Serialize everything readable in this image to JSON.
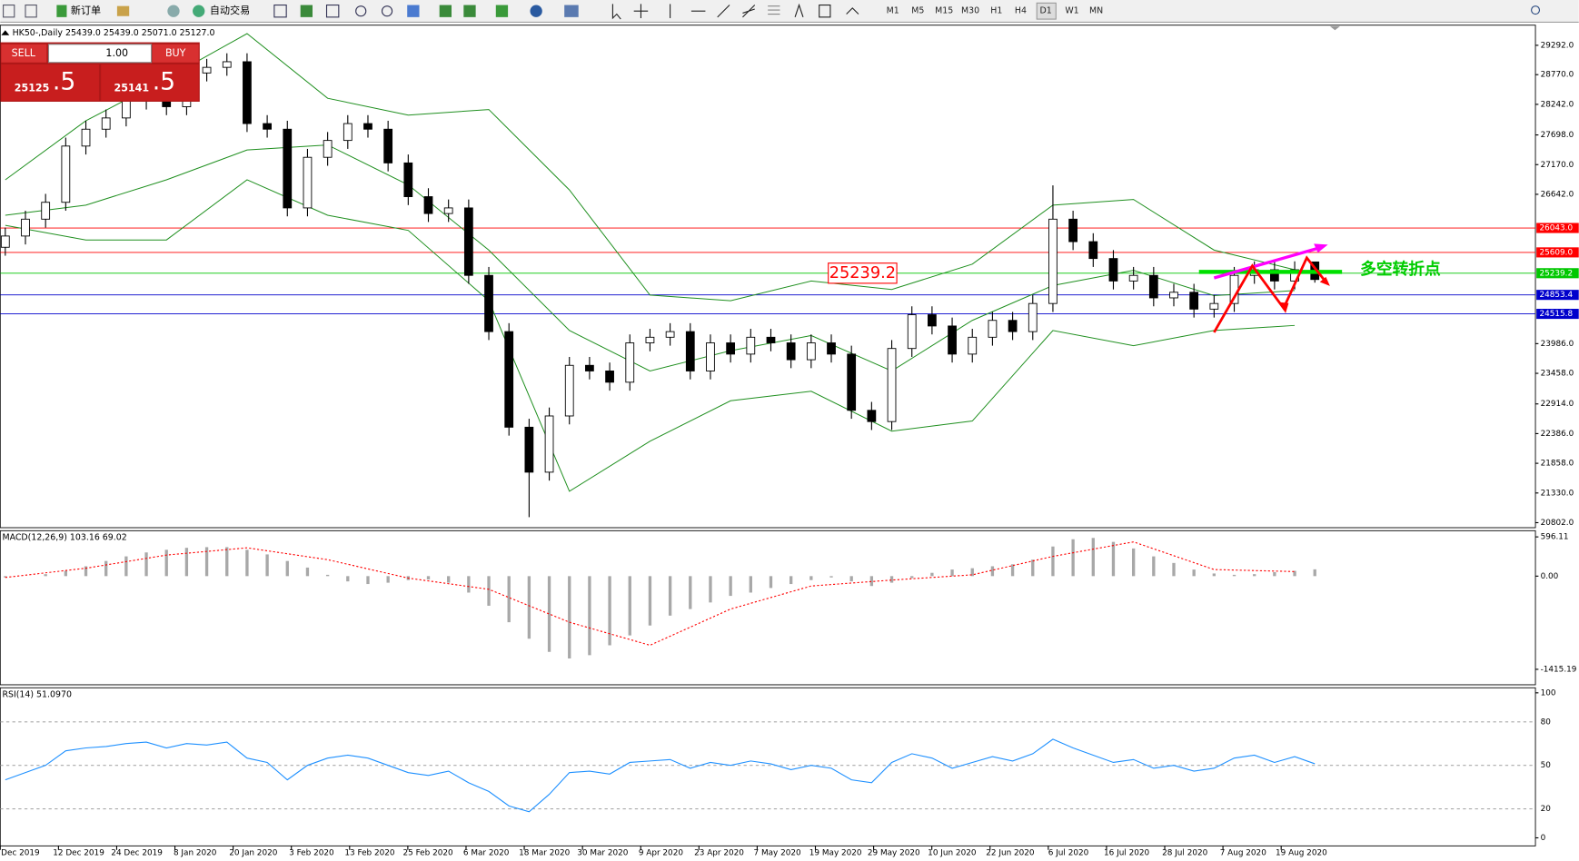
{
  "toolbar": {
    "new_order": "新订单",
    "auto_trade": "自动交易",
    "timeframes": [
      "M1",
      "M5",
      "M15",
      "M30",
      "H1",
      "H4",
      "D1",
      "W1",
      "MN"
    ]
  },
  "trade_panel": {
    "sell": "SELL",
    "buy": "BUY",
    "lot": "1.00",
    "sell_price": "25125",
    "sell_pips": ".5",
    "buy_price": "25141",
    "buy_pips": ".5"
  },
  "chart_data": {
    "type": "candlestick",
    "title": "HK50-,Daily 25439.0 25439.0 25071.0 25127.0",
    "x_labels": [
      "Dec 2019",
      "12 Dec 2019",
      "24 Dec 2019",
      "8 Jan 2020",
      "20 Jan 2020",
      "3 Feb 2020",
      "13 Feb 2020",
      "25 Feb 2020",
      "6 Mar 2020",
      "18 Mar 2020",
      "30 Mar 2020",
      "9 Apr 2020",
      "23 Apr 2020",
      "7 May 2020",
      "19 May 2020",
      "29 May 2020",
      "10 Jun 2020",
      "22 Jun 2020",
      "6 Jul 2020",
      "16 Jul 2020",
      "28 Jul 2020",
      "7 Aug 2020",
      "19 Aug 2020"
    ],
    "open": [
      25700,
      25900,
      26200,
      26500,
      27500,
      27800,
      28000,
      28300,
      28500,
      28200,
      28800,
      28900,
      29000,
      27900,
      27800,
      26400,
      27300,
      27600,
      27900,
      27800,
      27200,
      26600,
      26300,
      26400,
      25200,
      24200,
      22500,
      21700,
      22700,
      23600,
      23500,
      23300,
      24000,
      24100,
      24200,
      23500,
      24000,
      23800,
      24100,
      24000,
      23700,
      24000,
      23800,
      22800,
      22600,
      23900,
      24500,
      24300,
      23800,
      24100,
      24400,
      24200,
      24700,
      26200,
      25800,
      25500,
      25100,
      25200,
      24800,
      24900,
      24600,
      24700,
      25200,
      25300,
      25100,
      25439
    ],
    "high": [
      26050,
      26350,
      26650,
      27650,
      27950,
      28150,
      28450,
      28650,
      28650,
      28950,
      29050,
      29150,
      29150,
      28050,
      27950,
      27450,
      27750,
      28050,
      28050,
      27950,
      27350,
      26750,
      26550,
      26550,
      25350,
      24350,
      22650,
      22850,
      23750,
      23750,
      23650,
      24150,
      24250,
      24350,
      24350,
      24150,
      24150,
      24250,
      24250,
      24150,
      24150,
      24150,
      23950,
      22950,
      24050,
      24650,
      24650,
      24450,
      24250,
      24550,
      24550,
      24850,
      26800,
      26350,
      25950,
      25650,
      25350,
      25350,
      25050,
      25050,
      24850,
      25350,
      25450,
      25450,
      25450,
      25439
    ],
    "low": [
      25550,
      25750,
      26050,
      26350,
      27350,
      27650,
      27850,
      28150,
      28050,
      28050,
      28650,
      28750,
      27750,
      27650,
      26250,
      26250,
      27150,
      27450,
      27650,
      27050,
      26450,
      26150,
      26150,
      25050,
      24050,
      22350,
      20900,
      21550,
      22550,
      23350,
      23150,
      23150,
      23850,
      23950,
      23350,
      23350,
      23650,
      23650,
      23850,
      23550,
      23550,
      23650,
      22650,
      22450,
      22450,
      23750,
      24150,
      23650,
      23650,
      23950,
      24050,
      24050,
      24550,
      25650,
      25350,
      24950,
      24950,
      24650,
      24650,
      24450,
      24450,
      24550,
      25050,
      24950,
      24950,
      25071
    ],
    "close": [
      25900,
      26200,
      26500,
      27500,
      27800,
      28000,
      28300,
      28500,
      28200,
      28800,
      28900,
      29000,
      27900,
      27800,
      26400,
      27300,
      27600,
      27900,
      27800,
      27200,
      26600,
      26300,
      26400,
      25200,
      24200,
      22500,
      21700,
      22700,
      23600,
      23500,
      23300,
      24000,
      24100,
      24200,
      23500,
      24000,
      23800,
      24100,
      24000,
      23700,
      24000,
      23800,
      22800,
      22600,
      23900,
      24500,
      24300,
      23800,
      24100,
      24400,
      24200,
      24700,
      26200,
      25800,
      25500,
      25100,
      25200,
      24800,
      24900,
      24600,
      24700,
      25200,
      25300,
      25100,
      25300,
      25127
    ],
    "up_color": "#ffffff",
    "down_color": "#000000",
    "ylim": [
      20713,
      29650
    ],
    "yticks": [
      {
        "value": 29292,
        "label": "29292.0"
      },
      {
        "value": 28770,
        "label": "28770.0"
      },
      {
        "value": 28242,
        "label": "28242.0"
      },
      {
        "value": 27698,
        "label": "27698.0"
      },
      {
        "value": 27170,
        "label": "27170.0"
      },
      {
        "value": 26642,
        "label": "26642.0"
      },
      {
        "value": 23986,
        "label": "23986.0"
      },
      {
        "value": 23458,
        "label": "23458.0"
      },
      {
        "value": 22914,
        "label": "22914.0"
      },
      {
        "value": 22386,
        "label": "22386.0"
      },
      {
        "value": 21858,
        "label": "21858.0"
      },
      {
        "value": 21330,
        "label": "21330.0"
      },
      {
        "value": 20802,
        "label": "20802.0"
      }
    ],
    "bands": {
      "x": [
        0,
        4,
        8,
        12,
        16,
        20,
        24,
        28,
        32,
        36,
        40,
        44,
        48,
        52,
        56,
        60,
        64
      ],
      "series": [
        {
          "color": "#1f8f1f",
          "values": [
            26900,
            27950,
            28700,
            29500,
            28350,
            28050,
            28150,
            26720,
            24850,
            24750,
            25100,
            24950,
            25400,
            26450,
            26550,
            25650,
            25300
          ]
        },
        {
          "color": "#1f8f1f",
          "values": [
            26270,
            26450,
            26900,
            27430,
            27520,
            26810,
            25650,
            24220,
            23500,
            23860,
            24130,
            23500,
            24400,
            25020,
            25290,
            24840,
            24930
          ]
        },
        {
          "color": "#1f8f1f",
          "values": [
            26090,
            25830,
            25830,
            26900,
            26270,
            26000,
            24750,
            21360,
            22250,
            22970,
            23140,
            22430,
            22610,
            24220,
            23950,
            24220,
            24310
          ]
        }
      ]
    },
    "levels": [
      {
        "value": 26043,
        "label": "26043.0",
        "color": "#ff0000"
      },
      {
        "value": 25609,
        "label": "25609.0",
        "color": "#ff0000"
      },
      {
        "value": 25239.2,
        "color": "#00c800"
      },
      {
        "value": 24853.4,
        "color": "#0000cc"
      },
      {
        "value": 24515.8,
        "color": "#0000cc"
      }
    ],
    "annotations": [
      {
        "text": "多空转折点",
        "color": "#00cc00"
      }
    ],
    "macd": {
      "label": "MACD(12,26,9) 103.16 69.02",
      "ylim": [
        -1650,
        690
      ],
      "yticks": [
        596.11,
        {
          "value": 0,
          "label": "0.00"
        },
        -1415.19
      ],
      "histogram": [
        -20,
        0,
        30,
        80,
        150,
        230,
        300,
        360,
        400,
        430,
        440,
        440,
        400,
        330,
        230,
        130,
        20,
        -80,
        -120,
        -100,
        -60,
        -50,
        -100,
        -250,
        -450,
        -700,
        -950,
        -1150,
        -1250,
        -1200,
        -1050,
        -900,
        -750,
        -600,
        -500,
        -400,
        -300,
        -250,
        -180,
        -120,
        -60,
        -20,
        -80,
        -150,
        -100,
        -30,
        50,
        100,
        120,
        150,
        180,
        250,
        450,
        560,
        580,
        520,
        420,
        300,
        200,
        100,
        40,
        20,
        30,
        60,
        80,
        103.16
      ],
      "histogram_color": "#a8a8a8",
      "signal_x": [
        0,
        4,
        8,
        12,
        16,
        20,
        24,
        28,
        32,
        36,
        40,
        44,
        48,
        52,
        56,
        60,
        64
      ],
      "signal": [
        -20,
        120,
        320,
        430,
        250,
        -30,
        -200,
        -700,
        -1050,
        -500,
        -150,
        -60,
        20,
        300,
        520,
        100,
        69.02
      ],
      "signal_color": "#ff0000"
    },
    "rsi": {
      "label": "RSI(14) 51.0970",
      "ylim": [
        0,
        100
      ],
      "yticks": [
        100,
        80,
        50,
        20,
        0
      ],
      "values": [
        40,
        45,
        50,
        60,
        62,
        63,
        65,
        66,
        62,
        65,
        64,
        66,
        55,
        52,
        40,
        50,
        55,
        57,
        55,
        50,
        45,
        43,
        46,
        38,
        32,
        22,
        18,
        30,
        45,
        46,
        44,
        52,
        53,
        54,
        48,
        52,
        50,
        53,
        51,
        47,
        50,
        48,
        40,
        38,
        52,
        58,
        55,
        48,
        52,
        56,
        53,
        58,
        68,
        62,
        57,
        52,
        54,
        48,
        50,
        46,
        48,
        55,
        57,
        52,
        56,
        51.097
      ],
      "color": "#1e90ff"
    }
  }
}
